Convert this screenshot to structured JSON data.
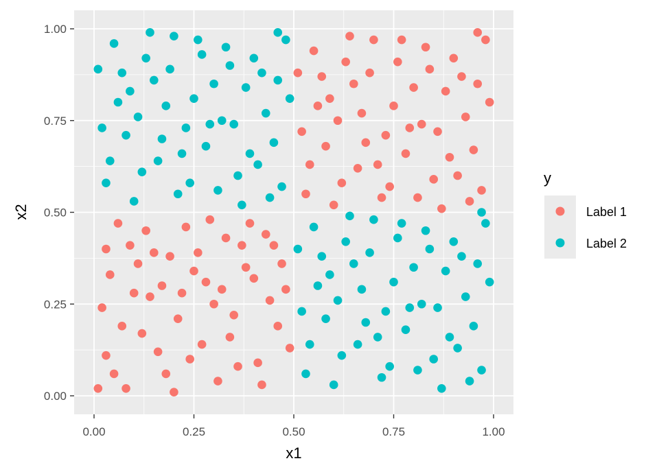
{
  "chart_data": {
    "type": "scatter",
    "title": "",
    "xlabel": "x1",
    "ylabel": "x2",
    "xlim": [
      0,
      1
    ],
    "ylim": [
      0,
      1
    ],
    "x_ticks": [
      "0.00",
      "0.25",
      "0.50",
      "0.75",
      "1.00"
    ],
    "y_ticks": [
      "0.00",
      "0.25",
      "0.50",
      "0.75",
      "1.00"
    ],
    "grid": true,
    "legend_position": "right",
    "legend": {
      "title": "y",
      "entries": [
        {
          "label": "Label 1",
          "color": "#F8766D"
        },
        {
          "label": "Label 2",
          "color": "#00BFC4"
        }
      ]
    },
    "series": [
      {
        "name": "Label 1",
        "color": "#F8766D",
        "points": [
          [
            0.03,
            0.11
          ],
          [
            0.08,
            0.02
          ],
          [
            0.12,
            0.17
          ],
          [
            0.18,
            0.06
          ],
          [
            0.22,
            0.28
          ],
          [
            0.27,
            0.14
          ],
          [
            0.31,
            0.04
          ],
          [
            0.35,
            0.22
          ],
          [
            0.41,
            0.09
          ],
          [
            0.46,
            0.19
          ],
          [
            0.04,
            0.33
          ],
          [
            0.09,
            0.41
          ],
          [
            0.14,
            0.27
          ],
          [
            0.19,
            0.38
          ],
          [
            0.23,
            0.46
          ],
          [
            0.28,
            0.31
          ],
          [
            0.33,
            0.43
          ],
          [
            0.38,
            0.35
          ],
          [
            0.43,
            0.44
          ],
          [
            0.48,
            0.29
          ],
          [
            0.02,
            0.24
          ],
          [
            0.06,
            0.47
          ],
          [
            0.11,
            0.36
          ],
          [
            0.16,
            0.12
          ],
          [
            0.21,
            0.21
          ],
          [
            0.26,
            0.39
          ],
          [
            0.3,
            0.25
          ],
          [
            0.36,
            0.08
          ],
          [
            0.4,
            0.32
          ],
          [
            0.45,
            0.41
          ],
          [
            0.01,
            0.02
          ],
          [
            0.07,
            0.19
          ],
          [
            0.13,
            0.45
          ],
          [
            0.17,
            0.3
          ],
          [
            0.24,
            0.1
          ],
          [
            0.29,
            0.48
          ],
          [
            0.34,
            0.16
          ],
          [
            0.39,
            0.47
          ],
          [
            0.44,
            0.26
          ],
          [
            0.49,
            0.13
          ],
          [
            0.05,
            0.06
          ],
          [
            0.1,
            0.28
          ],
          [
            0.15,
            0.39
          ],
          [
            0.2,
            0.01
          ],
          [
            0.25,
            0.34
          ],
          [
            0.32,
            0.29
          ],
          [
            0.37,
            0.41
          ],
          [
            0.42,
            0.03
          ],
          [
            0.47,
            0.36
          ],
          [
            0.03,
            0.4
          ],
          [
            0.53,
            0.55
          ],
          [
            0.58,
            0.68
          ],
          [
            0.62,
            0.58
          ],
          [
            0.67,
            0.77
          ],
          [
            0.71,
            0.63
          ],
          [
            0.76,
            0.91
          ],
          [
            0.81,
            0.54
          ],
          [
            0.86,
            0.72
          ],
          [
            0.91,
            0.6
          ],
          [
            0.96,
            0.85
          ],
          [
            0.55,
            0.94
          ],
          [
            0.59,
            0.81
          ],
          [
            0.64,
            0.98
          ],
          [
            0.69,
            0.88
          ],
          [
            0.73,
            0.71
          ],
          [
            0.78,
            0.66
          ],
          [
            0.83,
            0.95
          ],
          [
            0.88,
            0.83
          ],
          [
            0.93,
            0.76
          ],
          [
            0.98,
            0.97
          ],
          [
            0.52,
            0.72
          ],
          [
            0.57,
            0.87
          ],
          [
            0.61,
            0.75
          ],
          [
            0.66,
            0.62
          ],
          [
            0.7,
            0.97
          ],
          [
            0.75,
            0.79
          ],
          [
            0.8,
            0.84
          ],
          [
            0.85,
            0.59
          ],
          [
            0.9,
            0.92
          ],
          [
            0.95,
            0.67
          ],
          [
            0.54,
            0.63
          ],
          [
            0.6,
            0.52
          ],
          [
            0.65,
            0.85
          ],
          [
            0.72,
            0.54
          ],
          [
            0.77,
            0.97
          ],
          [
            0.82,
            0.74
          ],
          [
            0.87,
            0.51
          ],
          [
            0.92,
            0.87
          ],
          [
            0.97,
            0.56
          ],
          [
            0.99,
            0.8
          ],
          [
            0.56,
            0.79
          ],
          [
            0.63,
            0.91
          ],
          [
            0.68,
            0.69
          ],
          [
            0.74,
            0.57
          ],
          [
            0.79,
            0.73
          ],
          [
            0.84,
            0.89
          ],
          [
            0.89,
            0.65
          ],
          [
            0.94,
            0.53
          ],
          [
            0.51,
            0.88
          ],
          [
            0.96,
            0.99
          ]
        ]
      },
      {
        "name": "Label 2",
        "color": "#00BFC4",
        "points": [
          [
            0.03,
            0.58
          ],
          [
            0.08,
            0.71
          ],
          [
            0.12,
            0.61
          ],
          [
            0.18,
            0.79
          ],
          [
            0.22,
            0.66
          ],
          [
            0.27,
            0.93
          ],
          [
            0.31,
            0.56
          ],
          [
            0.35,
            0.74
          ],
          [
            0.41,
            0.63
          ],
          [
            0.46,
            0.86
          ],
          [
            0.05,
            0.96
          ],
          [
            0.09,
            0.83
          ],
          [
            0.14,
            0.99
          ],
          [
            0.19,
            0.89
          ],
          [
            0.23,
            0.73
          ],
          [
            0.28,
            0.68
          ],
          [
            0.33,
            0.95
          ],
          [
            0.38,
            0.84
          ],
          [
            0.43,
            0.77
          ],
          [
            0.48,
            0.97
          ],
          [
            0.02,
            0.73
          ],
          [
            0.07,
            0.88
          ],
          [
            0.11,
            0.76
          ],
          [
            0.16,
            0.64
          ],
          [
            0.2,
            0.98
          ],
          [
            0.25,
            0.81
          ],
          [
            0.3,
            0.85
          ],
          [
            0.36,
            0.6
          ],
          [
            0.4,
            0.92
          ],
          [
            0.45,
            0.69
          ],
          [
            0.04,
            0.64
          ],
          [
            0.1,
            0.53
          ],
          [
            0.15,
            0.86
          ],
          [
            0.21,
            0.55
          ],
          [
            0.26,
            0.97
          ],
          [
            0.32,
            0.75
          ],
          [
            0.37,
            0.52
          ],
          [
            0.42,
            0.88
          ],
          [
            0.47,
            0.57
          ],
          [
            0.49,
            0.81
          ],
          [
            0.06,
            0.8
          ],
          [
            0.13,
            0.92
          ],
          [
            0.17,
            0.7
          ],
          [
            0.24,
            0.58
          ],
          [
            0.29,
            0.74
          ],
          [
            0.34,
            0.9
          ],
          [
            0.39,
            0.66
          ],
          [
            0.44,
            0.54
          ],
          [
            0.01,
            0.89
          ],
          [
            0.46,
            0.99
          ],
          [
            0.53,
            0.06
          ],
          [
            0.58,
            0.21
          ],
          [
            0.62,
            0.11
          ],
          [
            0.67,
            0.29
          ],
          [
            0.71,
            0.16
          ],
          [
            0.76,
            0.43
          ],
          [
            0.81,
            0.07
          ],
          [
            0.86,
            0.24
          ],
          [
            0.91,
            0.13
          ],
          [
            0.96,
            0.36
          ],
          [
            0.55,
            0.46
          ],
          [
            0.59,
            0.33
          ],
          [
            0.64,
            0.49
          ],
          [
            0.69,
            0.39
          ],
          [
            0.73,
            0.23
          ],
          [
            0.78,
            0.18
          ],
          [
            0.83,
            0.45
          ],
          [
            0.88,
            0.34
          ],
          [
            0.93,
            0.27
          ],
          [
            0.98,
            0.47
          ],
          [
            0.52,
            0.23
          ],
          [
            0.57,
            0.38
          ],
          [
            0.61,
            0.26
          ],
          [
            0.66,
            0.14
          ],
          [
            0.7,
            0.48
          ],
          [
            0.75,
            0.31
          ],
          [
            0.8,
            0.35
          ],
          [
            0.85,
            0.1
          ],
          [
            0.9,
            0.42
          ],
          [
            0.95,
            0.19
          ],
          [
            0.54,
            0.14
          ],
          [
            0.6,
            0.03
          ],
          [
            0.65,
            0.36
          ],
          [
            0.72,
            0.05
          ],
          [
            0.77,
            0.47
          ],
          [
            0.82,
            0.25
          ],
          [
            0.87,
            0.02
          ],
          [
            0.92,
            0.38
          ],
          [
            0.97,
            0.07
          ],
          [
            0.99,
            0.31
          ],
          [
            0.56,
            0.3
          ],
          [
            0.63,
            0.42
          ],
          [
            0.68,
            0.2
          ],
          [
            0.74,
            0.08
          ],
          [
            0.79,
            0.24
          ],
          [
            0.84,
            0.4
          ],
          [
            0.89,
            0.16
          ],
          [
            0.94,
            0.04
          ],
          [
            0.51,
            0.4
          ],
          [
            0.97,
            0.5
          ]
        ]
      }
    ]
  }
}
